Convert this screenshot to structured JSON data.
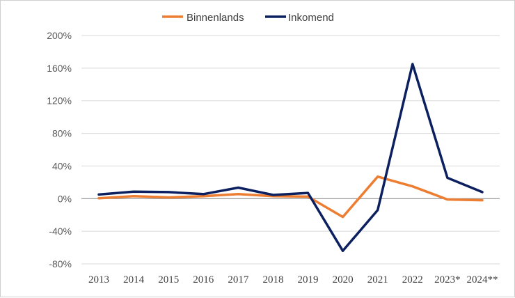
{
  "chart_data": {
    "type": "line",
    "categories": [
      "2013",
      "2014",
      "2015",
      "2016",
      "2017",
      "2018",
      "2019",
      "2020",
      "2021",
      "2022",
      "2023*",
      "2024**"
    ],
    "series": [
      {
        "name": "Binnenlands",
        "color": "#ed7d31",
        "values": [
          0.5,
          3,
          1.5,
          3,
          5.5,
          3,
          2.5,
          -22.5,
          27,
          15,
          -1,
          -2
        ]
      },
      {
        "name": "Inkomend",
        "color": "#0c2060",
        "values": [
          5,
          8.5,
          8,
          5.5,
          13.5,
          4.5,
          7,
          -64,
          -14,
          165,
          25.5,
          8
        ]
      }
    ],
    "y_ticks": [
      "200%",
      "160%",
      "120%",
      "80%",
      "40%",
      "0%",
      "-40%",
      "-80%"
    ],
    "ylim": [
      -80,
      200
    ],
    "y_unit": "%",
    "grid": true,
    "legend_position": "top-center"
  }
}
